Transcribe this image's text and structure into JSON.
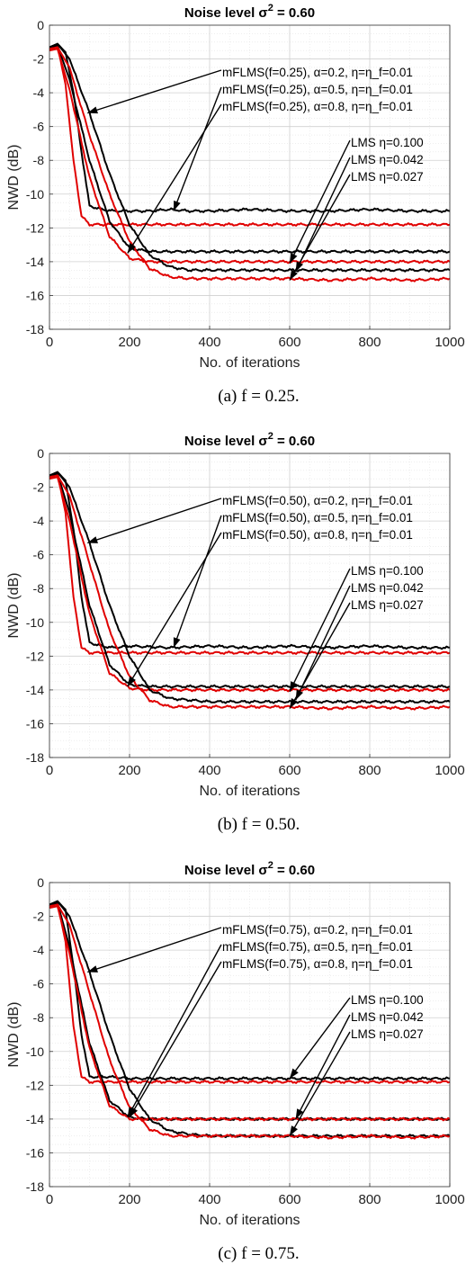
{
  "chart_data": [
    {
      "type": "line",
      "title": "Noise level σ² = 0.60",
      "title_main": "Noise level σ",
      "title_sup": "2",
      "title_tail": " = 0.60",
      "xlabel": "No. of iterations",
      "ylabel": "NWD (dB)",
      "xlim": [
        0,
        1000
      ],
      "ylim": [
        -18,
        0
      ],
      "xticks": [
        0,
        200,
        400,
        600,
        800,
        1000
      ],
      "yticks": [
        0,
        -2,
        -4,
        -6,
        -8,
        -10,
        -12,
        -14,
        -16,
        -18
      ],
      "grid": true,
      "caption": "(a) f = 0.25.",
      "annotations": [
        {
          "text": "mFLMS(f=0.25), α=0.2, η=η_f=0.01",
          "target": [
            95,
            -5.2
          ]
        },
        {
          "text": "mFLMS(f=0.25), α=0.5, η=η_f=0.01",
          "target": [
            310,
            -11.0
          ]
        },
        {
          "text": "mFLMS(f=0.25), α=0.8, η=η_f=0.01",
          "target": [
            195,
            -13.5
          ]
        },
        {
          "text": "LMS η=0.100",
          "target": [
            600,
            -14.1
          ]
        },
        {
          "text": "LMS η=0.042",
          "target": [
            615,
            -14.6
          ]
        },
        {
          "text": "LMS η=0.027",
          "target": [
            600,
            -15.1
          ]
        }
      ],
      "series": [
        {
          "color": "#000000",
          "x": [
            0,
            20,
            40,
            60,
            80,
            100,
            130,
            160,
            200,
            250,
            300,
            350,
            400,
            500,
            600,
            700,
            800,
            900,
            1000
          ],
          "y": [
            -1.4,
            -1.1,
            -1.6,
            -4.0,
            -7.5,
            -10.7,
            -10.9,
            -11.0,
            -11.0,
            -11.0,
            -10.9,
            -11.0,
            -11.0,
            -10.9,
            -11.0,
            -11.0,
            -10.9,
            -11.0,
            -11.0
          ]
        },
        {
          "color": "#e00000",
          "x": [
            0,
            20,
            40,
            60,
            80,
            100,
            150,
            200,
            300,
            400,
            600,
            800,
            1000
          ],
          "y": [
            -1.5,
            -1.2,
            -3.5,
            -8.0,
            -11.3,
            -11.8,
            -11.8,
            -11.8,
            -11.8,
            -11.8,
            -11.8,
            -11.8,
            -11.8
          ]
        },
        {
          "color": "#000000",
          "x": [
            0,
            20,
            50,
            100,
            150,
            200,
            250,
            300,
            400,
            500,
            600,
            700,
            800,
            900,
            1000
          ],
          "y": [
            -1.4,
            -1.2,
            -3.2,
            -8.0,
            -11.6,
            -13.2,
            -13.4,
            -13.4,
            -13.4,
            -13.4,
            -13.4,
            -13.4,
            -13.4,
            -13.4,
            -13.4
          ]
        },
        {
          "color": "#e00000",
          "x": [
            0,
            20,
            50,
            100,
            150,
            200,
            250,
            300,
            400,
            500,
            600,
            700,
            800,
            900,
            1000
          ],
          "y": [
            -1.5,
            -1.4,
            -3.8,
            -9.0,
            -12.5,
            -13.8,
            -14.0,
            -14.0,
            -14.0,
            -14.0,
            -14.0,
            -14.0,
            -14.0,
            -14.0,
            -14.0
          ]
        },
        {
          "color": "#000000",
          "x": [
            0,
            20,
            50,
            100,
            150,
            200,
            250,
            300,
            350,
            400,
            500,
            600,
            700,
            800,
            900,
            1000
          ],
          "y": [
            -1.3,
            -1.1,
            -2.0,
            -5.2,
            -8.8,
            -11.8,
            -13.6,
            -14.3,
            -14.5,
            -14.5,
            -14.5,
            -14.5,
            -14.5,
            -14.5,
            -14.5,
            -14.5
          ]
        },
        {
          "color": "#e00000",
          "x": [
            0,
            20,
            50,
            100,
            150,
            200,
            250,
            300,
            350,
            400,
            500,
            600,
            700,
            800,
            900,
            1000
          ],
          "y": [
            -1.4,
            -1.3,
            -2.5,
            -6.5,
            -10.0,
            -12.8,
            -14.4,
            -14.9,
            -15.0,
            -15.0,
            -15.0,
            -15.0,
            -15.1,
            -15.0,
            -15.1,
            -15.0
          ]
        }
      ]
    },
    {
      "type": "line",
      "title": "Noise level σ² = 0.60",
      "title_main": "Noise level σ",
      "title_sup": "2",
      "title_tail": " = 0.60",
      "xlabel": "No. of iterations",
      "ylabel": "NWD (dB)",
      "xlim": [
        0,
        1000
      ],
      "ylim": [
        -18,
        0
      ],
      "xticks": [
        0,
        200,
        400,
        600,
        800,
        1000
      ],
      "yticks": [
        0,
        -2,
        -4,
        -6,
        -8,
        -10,
        -12,
        -14,
        -16,
        -18
      ],
      "grid": true,
      "caption": "(b) f = 0.50.",
      "annotations": [
        {
          "text": "mFLMS(f=0.50), α=0.2, η=η_f=0.01",
          "target": [
            95,
            -5.3
          ]
        },
        {
          "text": "mFLMS(f=0.50), α=0.5, η=η_f=0.01",
          "target": [
            310,
            -11.5
          ]
        },
        {
          "text": "mFLMS(f=0.50), α=0.8, η=η_f=0.01",
          "target": [
            195,
            -13.8
          ]
        },
        {
          "text": "LMS η=0.100",
          "target": [
            600,
            -14.1
          ]
        },
        {
          "text": "LMS η=0.042",
          "target": [
            615,
            -14.6
          ]
        },
        {
          "text": "LMS η=0.027",
          "target": [
            600,
            -15.1
          ]
        }
      ],
      "series": [
        {
          "color": "#000000",
          "x": [
            0,
            20,
            40,
            60,
            80,
            100,
            130,
            160,
            200,
            300,
            400,
            500,
            600,
            700,
            800,
            900,
            1000
          ],
          "y": [
            -1.4,
            -1.1,
            -1.6,
            -4.5,
            -8.5,
            -11.2,
            -11.4,
            -11.5,
            -11.4,
            -11.5,
            -11.4,
            -11.5,
            -11.4,
            -11.5,
            -11.4,
            -11.5,
            -11.5
          ]
        },
        {
          "color": "#e00000",
          "x": [
            0,
            20,
            40,
            60,
            80,
            100,
            150,
            200,
            300,
            400,
            600,
            800,
            1000
          ],
          "y": [
            -1.5,
            -1.2,
            -3.5,
            -8.5,
            -11.5,
            -11.8,
            -11.8,
            -11.8,
            -11.8,
            -11.8,
            -11.8,
            -11.8,
            -11.8
          ]
        },
        {
          "color": "#000000",
          "x": [
            0,
            20,
            50,
            100,
            150,
            200,
            250,
            300,
            400,
            500,
            600,
            700,
            800,
            900,
            1000
          ],
          "y": [
            -1.4,
            -1.2,
            -3.5,
            -9.0,
            -12.5,
            -13.7,
            -13.8,
            -13.8,
            -13.8,
            -13.8,
            -13.8,
            -13.8,
            -13.8,
            -13.8,
            -13.8
          ]
        },
        {
          "color": "#e00000",
          "x": [
            0,
            20,
            50,
            100,
            150,
            200,
            250,
            300,
            400,
            500,
            600,
            700,
            800,
            900,
            1000
          ],
          "y": [
            -1.5,
            -1.4,
            -4.0,
            -9.5,
            -13.0,
            -13.9,
            -14.0,
            -14.0,
            -14.0,
            -14.0,
            -14.0,
            -14.0,
            -14.0,
            -14.0,
            -14.0
          ]
        },
        {
          "color": "#000000",
          "x": [
            0,
            20,
            50,
            100,
            150,
            200,
            250,
            300,
            350,
            400,
            500,
            600,
            700,
            800,
            900,
            1000
          ],
          "y": [
            -1.3,
            -1.1,
            -2.0,
            -5.3,
            -9.0,
            -12.0,
            -14.0,
            -14.5,
            -14.6,
            -14.7,
            -14.7,
            -14.7,
            -14.7,
            -14.7,
            -14.7,
            -14.7
          ]
        },
        {
          "color": "#e00000",
          "x": [
            0,
            20,
            50,
            100,
            150,
            200,
            250,
            300,
            350,
            400,
            500,
            600,
            700,
            800,
            900,
            1000
          ],
          "y": [
            -1.4,
            -1.3,
            -2.5,
            -6.5,
            -10.5,
            -13.2,
            -14.6,
            -15.0,
            -15.0,
            -15.0,
            -15.0,
            -15.0,
            -15.1,
            -15.0,
            -15.1,
            -15.0
          ]
        }
      ]
    },
    {
      "type": "line",
      "title": "Noise level σ² = 0.60",
      "title_main": "Noise level σ",
      "title_sup": "2",
      "title_tail": " = 0.60",
      "xlabel": "No. of iterations",
      "ylabel": "NWD (dB)",
      "xlim": [
        0,
        1000
      ],
      "ylim": [
        -18,
        0
      ],
      "xticks": [
        0,
        200,
        400,
        600,
        800,
        1000
      ],
      "yticks": [
        0,
        -2,
        -4,
        -6,
        -8,
        -10,
        -12,
        -14,
        -16,
        -18
      ],
      "grid": true,
      "caption": "(c) f = 0.75.",
      "annotations": [
        {
          "text": "mFLMS(f=0.75), α=0.2, η=η_f=0.01",
          "target": [
            95,
            -5.3
          ]
        },
        {
          "text": "mFLMS(f=0.75), α=0.5, η=η_f=0.01",
          "target": [
            195,
            -13.9
          ]
        },
        {
          "text": "mFLMS(f=0.75), α=0.8, η=η_f=0.01",
          "target": [
            200,
            -13.9
          ]
        },
        {
          "text": "LMS η=0.100",
          "target": [
            600,
            -11.6
          ]
        },
        {
          "text": "LMS η=0.042",
          "target": [
            615,
            -14.0
          ]
        },
        {
          "text": "LMS η=0.027",
          "target": [
            600,
            -15.0
          ]
        }
      ],
      "series": [
        {
          "color": "#000000",
          "x": [
            0,
            20,
            40,
            60,
            80,
            100,
            150,
            200,
            300,
            400,
            500,
            600,
            700,
            800,
            900,
            1000
          ],
          "y": [
            -1.4,
            -1.1,
            -1.6,
            -5.0,
            -9.0,
            -11.5,
            -11.5,
            -11.6,
            -11.6,
            -11.6,
            -11.6,
            -11.6,
            -11.6,
            -11.6,
            -11.6,
            -11.6
          ]
        },
        {
          "color": "#e00000",
          "x": [
            0,
            20,
            40,
            60,
            80,
            100,
            150,
            200,
            300,
            400,
            600,
            800,
            1000
          ],
          "y": [
            -1.5,
            -1.2,
            -3.5,
            -8.5,
            -11.5,
            -11.8,
            -11.8,
            -11.8,
            -11.8,
            -11.8,
            -11.8,
            -11.8,
            -11.8
          ]
        },
        {
          "color": "#000000",
          "x": [
            0,
            20,
            50,
            100,
            150,
            200,
            250,
            300,
            400,
            500,
            600,
            700,
            800,
            900,
            1000
          ],
          "y": [
            -1.4,
            -1.2,
            -3.8,
            -9.5,
            -12.9,
            -13.9,
            -14.0,
            -14.0,
            -14.0,
            -14.0,
            -14.0,
            -14.0,
            -14.0,
            -14.0,
            -14.0
          ]
        },
        {
          "color": "#e00000",
          "x": [
            0,
            20,
            50,
            100,
            150,
            200,
            250,
            300,
            400,
            500,
            600,
            700,
            800,
            900,
            1000
          ],
          "y": [
            -1.5,
            -1.4,
            -4.2,
            -9.8,
            -13.2,
            -14.0,
            -14.0,
            -14.0,
            -14.0,
            -14.0,
            -14.0,
            -14.0,
            -14.0,
            -14.0,
            -14.0
          ]
        },
        {
          "color": "#000000",
          "x": [
            0,
            20,
            50,
            100,
            150,
            200,
            250,
            300,
            350,
            400,
            500,
            600,
            700,
            800,
            900,
            1000
          ],
          "y": [
            -1.3,
            -1.1,
            -2.0,
            -5.3,
            -9.0,
            -12.2,
            -14.0,
            -14.7,
            -14.9,
            -15.0,
            -15.0,
            -15.0,
            -15.0,
            -15.0,
            -15.0,
            -15.0
          ]
        },
        {
          "color": "#e00000",
          "x": [
            0,
            20,
            50,
            100,
            150,
            200,
            250,
            300,
            350,
            400,
            500,
            600,
            700,
            800,
            900,
            1000
          ],
          "y": [
            -1.4,
            -1.3,
            -2.5,
            -6.5,
            -10.5,
            -13.3,
            -14.6,
            -15.0,
            -15.0,
            -15.0,
            -15.0,
            -15.0,
            -15.1,
            -15.0,
            -15.1,
            -15.0
          ]
        }
      ]
    }
  ]
}
